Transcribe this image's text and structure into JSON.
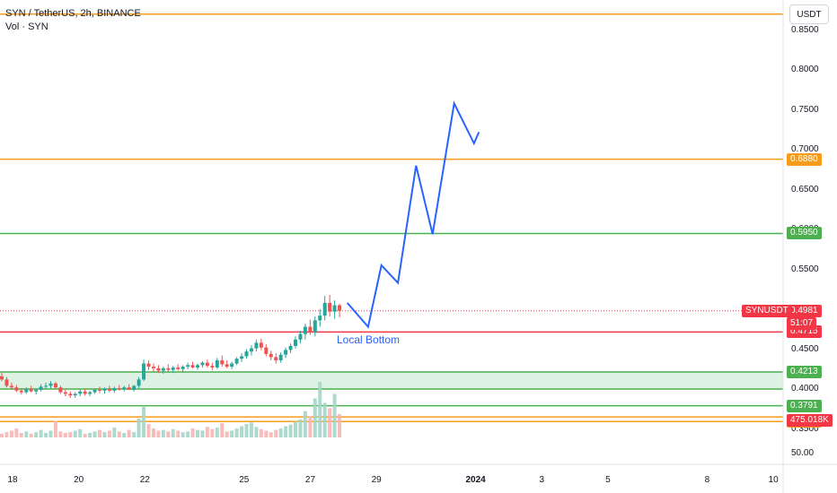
{
  "legend": {
    "symbol": "SYN / TetherUS, 2h, BINANCE",
    "volume": "Vol · SYN"
  },
  "currency_button": "USDT",
  "colors": {
    "orange": "#f59c1a",
    "green": "#4caf50",
    "red": "#f23645",
    "blue": "#2962ff",
    "up": "#26a69a",
    "down": "#ef5350",
    "zone_fill": "#d4efdc"
  },
  "chart_data": {
    "type": "candlestick",
    "symbol": "SYN / TetherUS",
    "interval": "2h",
    "exchange": "BINANCE",
    "y_axis_labels": [
      "0.8500",
      "0.8000",
      "0.7500",
      "0.7000",
      "0.6500",
      "0.6000",
      "0.5500",
      "0.5000",
      "0.4500",
      "0.4000",
      "0.3500"
    ],
    "ylim": [
      0.337,
      0.876
    ],
    "x_ticks": [
      {
        "label": "18",
        "day": 18
      },
      {
        "label": "20",
        "day": 20
      },
      {
        "label": "22",
        "day": 22
      },
      {
        "label": "25",
        "day": 25
      },
      {
        "label": "27",
        "day": 27
      },
      {
        "label": "29",
        "day": 29
      },
      {
        "label": "2024",
        "day": 32,
        "bold": true
      },
      {
        "label": "3",
        "day": 34
      },
      {
        "label": "5",
        "day": 36
      },
      {
        "label": "8",
        "day": 39
      },
      {
        "label": "10",
        "day": 41
      }
    ],
    "horizontal_levels": [
      {
        "price": 0.87,
        "color": "orange",
        "label": ""
      },
      {
        "price": 0.688,
        "color": "orange",
        "label": "0.6880"
      },
      {
        "price": 0.595,
        "color": "green",
        "label": "0.5950"
      },
      {
        "price": 0.4715,
        "color": "red",
        "label": "0.4715"
      },
      {
        "price": 0.4213,
        "color": "green",
        "label": "0.4213"
      },
      {
        "price": 0.4,
        "color": "green",
        "label": ""
      },
      {
        "price": 0.3791,
        "color": "green",
        "label": "0.3791"
      },
      {
        "price": 0.365,
        "color": "orange",
        "label": ""
      },
      {
        "price": 0.3592,
        "color": "orange",
        "label": "0.3592"
      }
    ],
    "support_zone": [
      0.4,
      0.4213
    ],
    "current_price": {
      "symbol": "SYNUSDT",
      "price": "0.4981",
      "countdown": "51:07",
      "value": 0.4981
    },
    "volume_label": "475.018K",
    "volume_axis_label": "50.00",
    "candles": [
      [
        0.416,
        0.42,
        0.41,
        0.412
      ],
      [
        0.412,
        0.415,
        0.402,
        0.404
      ],
      [
        0.404,
        0.408,
        0.399,
        0.402
      ],
      [
        0.402,
        0.405,
        0.396,
        0.398
      ],
      [
        0.398,
        0.401,
        0.393,
        0.396
      ],
      [
        0.396,
        0.402,
        0.394,
        0.4
      ],
      [
        0.4,
        0.404,
        0.396,
        0.397
      ],
      [
        0.397,
        0.401,
        0.393,
        0.399
      ],
      [
        0.399,
        0.406,
        0.397,
        0.403
      ],
      [
        0.403,
        0.408,
        0.4,
        0.404
      ],
      [
        0.404,
        0.41,
        0.401,
        0.407
      ],
      [
        0.407,
        0.409,
        0.4,
        0.402
      ],
      [
        0.402,
        0.404,
        0.394,
        0.396
      ],
      [
        0.396,
        0.399,
        0.391,
        0.394
      ],
      [
        0.394,
        0.397,
        0.389,
        0.392
      ],
      [
        0.392,
        0.396,
        0.389,
        0.394
      ],
      [
        0.394,
        0.399,
        0.391,
        0.397
      ],
      [
        0.397,
        0.4,
        0.392,
        0.394
      ],
      [
        0.394,
        0.398,
        0.391,
        0.396
      ],
      [
        0.396,
        0.401,
        0.394,
        0.399
      ],
      [
        0.399,
        0.403,
        0.395,
        0.398
      ],
      [
        0.398,
        0.402,
        0.394,
        0.4
      ],
      [
        0.4,
        0.404,
        0.396,
        0.398
      ],
      [
        0.398,
        0.403,
        0.395,
        0.401
      ],
      [
        0.401,
        0.405,
        0.398,
        0.4
      ],
      [
        0.4,
        0.404,
        0.397,
        0.402
      ],
      [
        0.402,
        0.406,
        0.399,
        0.399
      ],
      [
        0.399,
        0.405,
        0.397,
        0.404
      ],
      [
        0.404,
        0.415,
        0.401,
        0.412
      ],
      [
        0.412,
        0.437,
        0.41,
        0.432
      ],
      [
        0.432,
        0.436,
        0.424,
        0.428
      ],
      [
        0.428,
        0.432,
        0.422,
        0.426
      ],
      [
        0.426,
        0.43,
        0.42,
        0.423
      ],
      [
        0.423,
        0.428,
        0.419,
        0.426
      ],
      [
        0.426,
        0.431,
        0.422,
        0.424
      ],
      [
        0.424,
        0.429,
        0.42,
        0.427
      ],
      [
        0.427,
        0.431,
        0.423,
        0.425
      ],
      [
        0.425,
        0.43,
        0.421,
        0.428
      ],
      [
        0.428,
        0.433,
        0.425,
        0.43
      ],
      [
        0.43,
        0.434,
        0.426,
        0.427
      ],
      [
        0.427,
        0.432,
        0.424,
        0.43
      ],
      [
        0.43,
        0.435,
        0.427,
        0.433
      ],
      [
        0.433,
        0.437,
        0.427,
        0.429
      ],
      [
        0.429,
        0.433,
        0.424,
        0.427
      ],
      [
        0.427,
        0.439,
        0.425,
        0.436
      ],
      [
        0.436,
        0.442,
        0.428,
        0.431
      ],
      [
        0.431,
        0.436,
        0.426,
        0.428
      ],
      [
        0.428,
        0.434,
        0.425,
        0.432
      ],
      [
        0.432,
        0.44,
        0.43,
        0.438
      ],
      [
        0.438,
        0.445,
        0.434,
        0.441
      ],
      [
        0.441,
        0.45,
        0.438,
        0.447
      ],
      [
        0.447,
        0.455,
        0.442,
        0.451
      ],
      [
        0.451,
        0.462,
        0.447,
        0.458
      ],
      [
        0.458,
        0.463,
        0.449,
        0.452
      ],
      [
        0.452,
        0.456,
        0.441,
        0.444
      ],
      [
        0.444,
        0.448,
        0.436,
        0.44
      ],
      [
        0.44,
        0.445,
        0.432,
        0.436
      ],
      [
        0.436,
        0.446,
        0.433,
        0.443
      ],
      [
        0.443,
        0.452,
        0.439,
        0.449
      ],
      [
        0.449,
        0.457,
        0.445,
        0.454
      ],
      [
        0.454,
        0.466,
        0.451,
        0.462
      ],
      [
        0.462,
        0.473,
        0.457,
        0.469
      ],
      [
        0.469,
        0.482,
        0.462,
        0.478
      ],
      [
        0.478,
        0.487,
        0.468,
        0.471
      ],
      [
        0.471,
        0.491,
        0.466,
        0.486
      ],
      [
        0.486,
        0.5,
        0.478,
        0.492
      ],
      [
        0.492,
        0.517,
        0.486,
        0.508
      ],
      [
        0.508,
        0.518,
        0.491,
        0.497
      ],
      [
        0.497,
        0.511,
        0.488,
        0.505
      ],
      [
        0.505,
        0.507,
        0.49,
        0.498
      ]
    ],
    "volumes": [
      5,
      7,
      9,
      12,
      6,
      8,
      5,
      7,
      10,
      6,
      9,
      22,
      8,
      6,
      7,
      9,
      11,
      5,
      6,
      8,
      10,
      7,
      9,
      13,
      8,
      6,
      10,
      7,
      25,
      42,
      18,
      12,
      9,
      10,
      8,
      11,
      9,
      7,
      8,
      12,
      10,
      9,
      14,
      11,
      13,
      19,
      8,
      9,
      12,
      15,
      18,
      20,
      14,
      11,
      9,
      7,
      10,
      12,
      15,
      17,
      21,
      24,
      35,
      28,
      52,
      74,
      46,
      39,
      58,
      31
    ],
    "projection": [
      {
        "day": 28.12,
        "price": 0.508
      },
      {
        "day": 28.75,
        "price": 0.478
      },
      {
        "day": 29.15,
        "price": 0.555
      },
      {
        "day": 29.65,
        "price": 0.533
      },
      {
        "day": 30.2,
        "price": 0.68
      },
      {
        "day": 30.7,
        "price": 0.594
      },
      {
        "day": 31.35,
        "price": 0.758
      },
      {
        "day": 31.95,
        "price": 0.708
      },
      {
        "day": 32.1,
        "price": 0.722
      }
    ],
    "annotation": "Local Bottom"
  }
}
